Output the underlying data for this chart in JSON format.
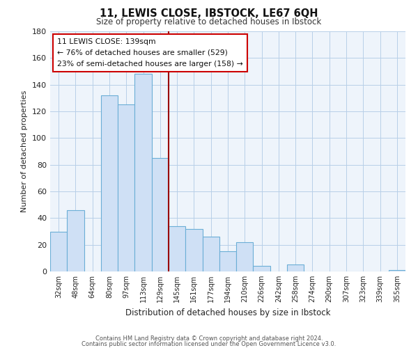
{
  "title": "11, LEWIS CLOSE, IBSTOCK, LE67 6QH",
  "subtitle": "Size of property relative to detached houses in Ibstock",
  "xlabel": "Distribution of detached houses by size in Ibstock",
  "ylabel": "Number of detached properties",
  "bar_labels": [
    "32sqm",
    "48sqm",
    "64sqm",
    "80sqm",
    "97sqm",
    "113sqm",
    "129sqm",
    "145sqm",
    "161sqm",
    "177sqm",
    "194sqm",
    "210sqm",
    "226sqm",
    "242sqm",
    "258sqm",
    "274sqm",
    "290sqm",
    "307sqm",
    "323sqm",
    "339sqm",
    "355sqm"
  ],
  "bar_values": [
    30,
    46,
    0,
    132,
    125,
    148,
    85,
    34,
    32,
    26,
    15,
    22,
    4,
    0,
    5,
    0,
    0,
    0,
    0,
    0,
    1
  ],
  "bar_color": "#cfe0f5",
  "bar_edge_color": "#6baed6",
  "vline_color": "#990000",
  "vline_index": 6.5,
  "annotation_title": "11 LEWIS CLOSE: 139sqm",
  "annotation_line1": "← 76% of detached houses are smaller (529)",
  "annotation_line2": "23% of semi-detached houses are larger (158) →",
  "annotation_box_facecolor": "#ffffff",
  "annotation_box_edgecolor": "#cc0000",
  "ylim": [
    0,
    180
  ],
  "yticks": [
    0,
    20,
    40,
    60,
    80,
    100,
    120,
    140,
    160,
    180
  ],
  "footer1": "Contains HM Land Registry data © Crown copyright and database right 2024.",
  "footer2": "Contains public sector information licensed under the Open Government Licence v3.0.",
  "bg_color": "#eef4fb"
}
